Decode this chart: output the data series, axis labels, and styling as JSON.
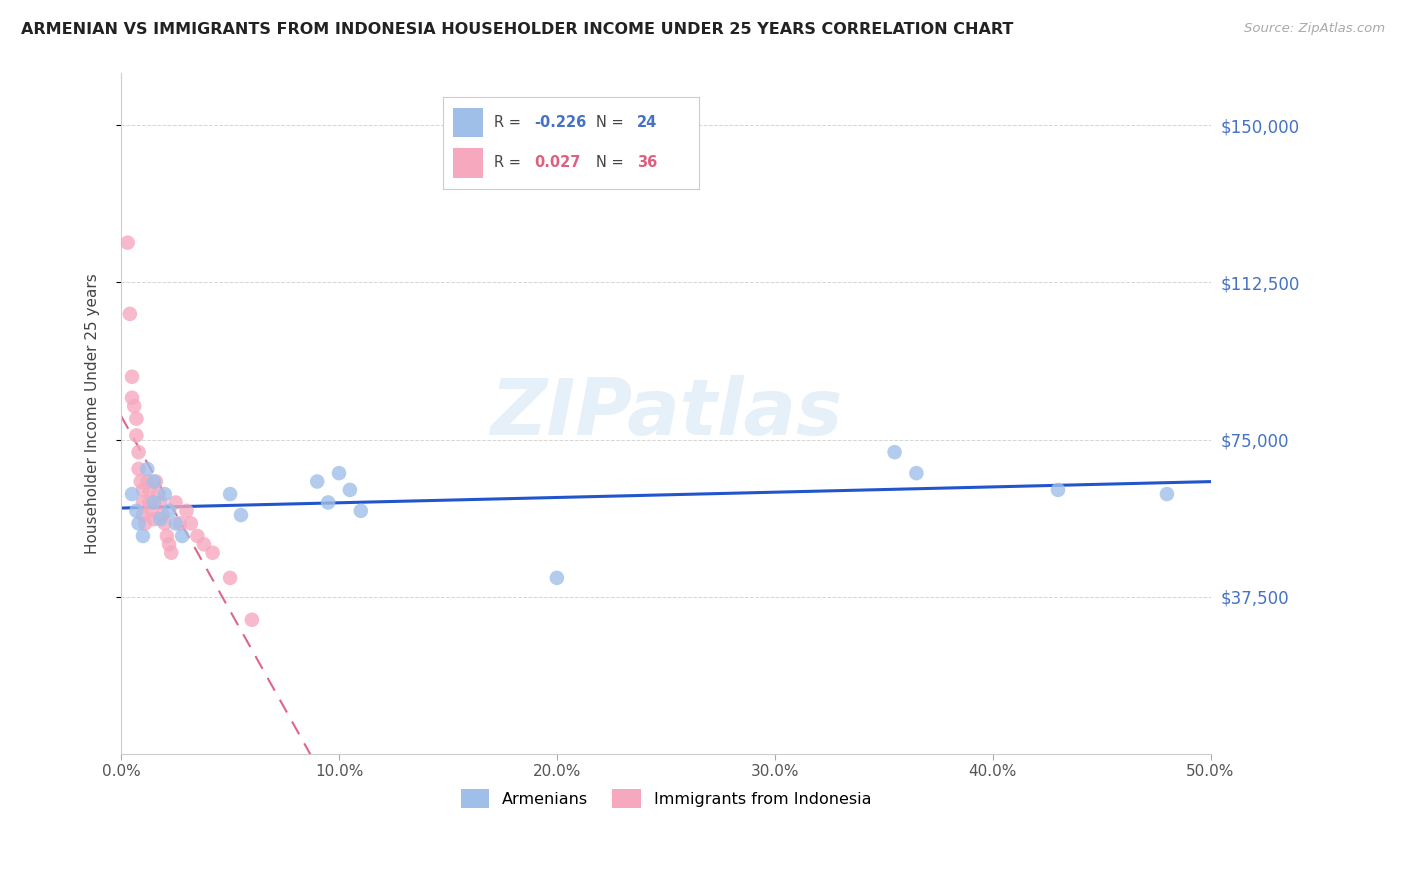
{
  "title": "ARMENIAN VS IMMIGRANTS FROM INDONESIA HOUSEHOLDER INCOME UNDER 25 YEARS CORRELATION CHART",
  "source": "Source: ZipAtlas.com",
  "ylabel": "Householder Income Under 25 years",
  "ylim": [
    0,
    162500
  ],
  "xlim": [
    0.0,
    0.5
  ],
  "ytick_labels": [
    "$37,500",
    "$75,000",
    "$112,500",
    "$150,000"
  ],
  "ytick_vals": [
    37500,
    75000,
    112500,
    150000
  ],
  "xtick_labels": [
    "0.0%",
    "10.0%",
    "20.0%",
    "30.0%",
    "40.0%",
    "50.0%"
  ],
  "xtick_vals": [
    0.0,
    0.1,
    0.2,
    0.3,
    0.4,
    0.5
  ],
  "legend_r_armenian": "-0.226",
  "legend_n_armenian": "24",
  "legend_r_indonesia": "0.027",
  "legend_n_indonesia": "36",
  "armenian_color": "#a0bfe8",
  "indonesia_color": "#f5a8be",
  "armenian_line_color": "#2255cc",
  "indonesia_line_color": "#dd6688",
  "watermark": "ZIPatlas",
  "armenian_x": [
    0.005,
    0.007,
    0.008,
    0.01,
    0.012,
    0.015,
    0.015,
    0.018,
    0.02,
    0.022,
    0.025,
    0.028,
    0.05,
    0.055,
    0.09,
    0.095,
    0.1,
    0.105,
    0.11,
    0.2,
    0.355,
    0.365,
    0.43,
    0.48
  ],
  "armenian_y": [
    62000,
    58000,
    55000,
    52000,
    68000,
    65000,
    60000,
    56000,
    62000,
    58000,
    55000,
    52000,
    62000,
    57000,
    65000,
    60000,
    67000,
    63000,
    58000,
    42000,
    72000,
    67000,
    63000,
    62000
  ],
  "indonesia_x": [
    0.003,
    0.004,
    0.005,
    0.005,
    0.006,
    0.007,
    0.007,
    0.008,
    0.008,
    0.009,
    0.01,
    0.01,
    0.01,
    0.011,
    0.012,
    0.013,
    0.013,
    0.014,
    0.015,
    0.016,
    0.017,
    0.018,
    0.019,
    0.02,
    0.021,
    0.022,
    0.023,
    0.025,
    0.027,
    0.03,
    0.032,
    0.035,
    0.038,
    0.042,
    0.05,
    0.06
  ],
  "indonesia_y": [
    122000,
    105000,
    90000,
    85000,
    83000,
    80000,
    76000,
    72000,
    68000,
    65000,
    63000,
    60000,
    57000,
    55000,
    65000,
    63000,
    60000,
    58000,
    56000,
    65000,
    62000,
    60000,
    57000,
    55000,
    52000,
    50000,
    48000,
    60000,
    55000,
    58000,
    55000,
    52000,
    50000,
    48000,
    42000,
    32000
  ]
}
